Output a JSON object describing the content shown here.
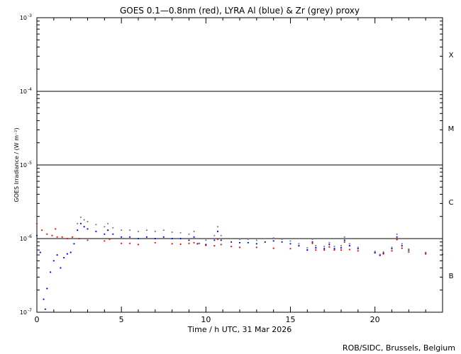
{
  "chart_data": {
    "type": "line",
    "title": "GOES 0.1—0.8nm (red), LYRA Al (blue) & Zr (grey) proxy",
    "xlabel": "Time / h UTC, 31 Mar 2026",
    "ylabel": "GOES Irradiance / (W m⁻²)",
    "xlim": [
      0,
      24
    ],
    "ylim": [
      1e-07,
      0.001
    ],
    "yscale": "log",
    "xticks": [
      0,
      5,
      10,
      15,
      20
    ],
    "xtick_labels": [
      "0",
      "5",
      "10",
      "15",
      "20"
    ],
    "yticks": [
      {
        "base": "10",
        "exp": "-7"
      },
      {
        "base": "10",
        "exp": "-6"
      },
      {
        "base": "10",
        "exp": "-5"
      },
      {
        "base": "10",
        "exp": "-4"
      },
      {
        "base": "10",
        "exp": "-3"
      }
    ],
    "flare_class_lines": [
      1e-06,
      1e-05,
      0.0001
    ],
    "flare_classes": [
      {
        "label": "B",
        "level": 3.16e-07
      },
      {
        "label": "C",
        "level": 3.16e-06
      },
      {
        "label": "M",
        "level": 3.16e-05
      },
      {
        "label": "X",
        "level": 0.000316
      }
    ],
    "series": [
      {
        "name": "GOES 0.1-0.8nm",
        "color": "#ff0000",
        "points": [
          [
            0,
            1.6e-06
          ],
          [
            0.3,
            1.3e-06
          ],
          [
            0.6,
            1.15e-06
          ],
          [
            0.9,
            1.1e-06
          ],
          [
            1.1,
            1.35e-06
          ],
          [
            1.2,
            1.05e-06
          ],
          [
            1.5,
            1.05e-06
          ],
          [
            1.8,
            1e-06
          ],
          [
            2.1,
            1.05e-06
          ],
          [
            2.5,
            1e-06
          ],
          [
            3.0,
            9.5e-07
          ],
          [
            4.0,
            9.3e-07
          ],
          [
            4.3,
            9.8e-07
          ],
          [
            5.0,
            8.6e-07
          ],
          [
            5.5,
            8.6e-07
          ],
          [
            6.0,
            8.3e-07
          ],
          [
            7.0,
            8.8e-07
          ],
          [
            8.0,
            8.5e-07
          ],
          [
            8.5,
            8.4e-07
          ],
          [
            9.0,
            8.6e-07
          ],
          [
            9.3,
            8.8e-07
          ],
          [
            9.6,
            8.6e-07
          ],
          [
            10.0,
            8.1e-07
          ],
          [
            10.5,
            8e-07
          ],
          [
            10.7,
            9.8e-07
          ],
          [
            10.9,
            8.3e-07
          ],
          [
            11.5,
            7.8e-07
          ],
          [
            12.0,
            7.6e-07
          ],
          [
            13.0,
            7.6e-07
          ],
          [
            14.0,
            7.4e-07
          ],
          [
            15.0,
            7.3e-07
          ],
          [
            16.0,
            7e-07
          ],
          [
            16.3,
            8.6e-07
          ],
          [
            16.5,
            7e-07
          ],
          [
            17.0,
            7e-07
          ],
          [
            17.3,
            7.7e-07
          ],
          [
            17.6,
            7e-07
          ],
          [
            18.0,
            7e-07
          ],
          [
            18.2,
            9e-07
          ],
          [
            18.5,
            7.1e-07
          ],
          [
            19.0,
            6.8e-07
          ],
          [
            20.0,
            6.4e-07
          ],
          [
            20.3,
            5.9e-07
          ],
          [
            20.5,
            6.2e-07
          ],
          [
            21.0,
            6.8e-07
          ],
          [
            21.3,
            9.7e-07
          ],
          [
            21.6,
            7.4e-07
          ],
          [
            22.0,
            6.6e-07
          ],
          [
            23.0,
            6.2e-07
          ],
          [
            24.0,
            6.1e-07
          ]
        ]
      },
      {
        "name": "LYRA Al proxy",
        "color": "#0000ff",
        "points": [
          [
            0,
            1.1e-06
          ],
          [
            0.2,
            6.5e-07
          ],
          [
            0.4,
            1.5e-07
          ],
          [
            0.5,
            1.1e-07
          ],
          [
            0.6,
            2.1e-07
          ],
          [
            0.8,
            3.5e-07
          ],
          [
            1.0,
            5e-07
          ],
          [
            1.2,
            6e-07
          ],
          [
            1.4,
            4e-07
          ],
          [
            1.6,
            5.5e-07
          ],
          [
            1.8,
            6.2e-07
          ],
          [
            2.0,
            6.5e-07
          ],
          [
            2.2,
            8.5e-07
          ],
          [
            2.4,
            1.3e-06
          ],
          [
            2.6,
            1.6e-06
          ],
          [
            2.8,
            1.45e-06
          ],
          [
            3.0,
            1.35e-06
          ],
          [
            3.5,
            1.25e-06
          ],
          [
            4.0,
            1.15e-06
          ],
          [
            4.2,
            1.3e-06
          ],
          [
            4.5,
            1.15e-06
          ],
          [
            5.0,
            1.05e-06
          ],
          [
            5.5,
            1.05e-06
          ],
          [
            6.0,
            1e-06
          ],
          [
            6.5,
            1.05e-06
          ],
          [
            7.0,
            1e-06
          ],
          [
            7.5,
            1.05e-06
          ],
          [
            8.0,
            1e-06
          ],
          [
            8.5,
            1e-06
          ],
          [
            9.0,
            9.5e-07
          ],
          [
            9.3,
            1.05e-06
          ],
          [
            9.5,
            8.5e-07
          ],
          [
            10.0,
            8.3e-07
          ],
          [
            10.5,
            9.5e-07
          ],
          [
            10.7,
            1.25e-06
          ],
          [
            10.9,
            9.5e-07
          ],
          [
            11.5,
            9e-07
          ],
          [
            12.0,
            8.8e-07
          ],
          [
            12.5,
            8.8e-07
          ],
          [
            13.0,
            8.5e-07
          ],
          [
            13.5,
            9e-07
          ],
          [
            14.0,
            9.3e-07
          ],
          [
            14.5,
            9e-07
          ],
          [
            15.0,
            8.5e-07
          ],
          [
            15.5,
            8e-07
          ],
          [
            16.0,
            7e-07
          ],
          [
            16.3,
            9e-07
          ],
          [
            16.5,
            7.5e-07
          ],
          [
            17.0,
            7.3e-07
          ],
          [
            17.3,
            8.3e-07
          ],
          [
            17.6,
            7.3e-07
          ],
          [
            18.0,
            7.5e-07
          ],
          [
            18.2,
            9.5e-07
          ],
          [
            18.5,
            8e-07
          ],
          [
            19.0,
            7.3e-07
          ],
          [
            20.0,
            6.5e-07
          ],
          [
            20.3,
            6e-07
          ],
          [
            20.5,
            6.4e-07
          ],
          [
            21.0,
            7.3e-07
          ],
          [
            21.3,
            1.05e-06
          ],
          [
            21.6,
            8e-07
          ],
          [
            22.0,
            7e-07
          ],
          [
            23.0,
            6.4e-07
          ],
          [
            24.0,
            6.2e-07
          ]
        ]
      },
      {
        "name": "LYRA Zr proxy",
        "color": "#808080",
        "points": [
          [
            2.2,
            1e-06
          ],
          [
            2.4,
            1.6e-06
          ],
          [
            2.6,
            1.95e-06
          ],
          [
            2.8,
            1.8e-06
          ],
          [
            3.0,
            1.7e-06
          ],
          [
            3.5,
            1.55e-06
          ],
          [
            4.0,
            1.45e-06
          ],
          [
            4.2,
            1.6e-06
          ],
          [
            4.5,
            1.4e-06
          ],
          [
            5.0,
            1.3e-06
          ],
          [
            5.5,
            1.3e-06
          ],
          [
            6.0,
            1.25e-06
          ],
          [
            6.5,
            1.3e-06
          ],
          [
            7.0,
            1.25e-06
          ],
          [
            7.5,
            1.3e-06
          ],
          [
            8.0,
            1.22e-06
          ],
          [
            8.5,
            1.2e-06
          ],
          [
            9.0,
            1.15e-06
          ],
          [
            9.3,
            1.25e-06
          ],
          [
            9.5,
            1e-06
          ],
          [
            10.0,
            9.5e-07
          ],
          [
            10.5,
            1.1e-06
          ],
          [
            10.7,
            1.45e-06
          ],
          [
            10.9,
            1.1e-06
          ],
          [
            11.5,
            1e-06
          ],
          [
            12.0,
            9.8e-07
          ],
          [
            12.5,
            9.8e-07
          ],
          [
            13.0,
            9.5e-07
          ],
          [
            13.5,
            1e-06
          ],
          [
            14.0,
            1.02e-06
          ],
          [
            14.5,
            9.8e-07
          ],
          [
            15.0,
            9.3e-07
          ],
          [
            15.5,
            8.5e-07
          ],
          [
            16.0,
            7.5e-07
          ],
          [
            16.3,
            9.8e-07
          ],
          [
            16.5,
            8e-07
          ],
          [
            17.0,
            7.8e-07
          ],
          [
            17.3,
            8.8e-07
          ],
          [
            17.6,
            7.8e-07
          ],
          [
            18.0,
            8e-07
          ],
          [
            18.2,
            1.05e-06
          ],
          [
            18.5,
            8.5e-07
          ],
          [
            19.0,
            7.6e-07
          ],
          [
            20.0,
            6.7e-07
          ],
          [
            20.3,
            6.1e-07
          ],
          [
            20.5,
            6.6e-07
          ],
          [
            21.0,
            7.6e-07
          ],
          [
            21.3,
            1.15e-06
          ],
          [
            21.6,
            8.5e-07
          ],
          [
            22.0,
            7.2e-07
          ],
          [
            23.0,
            6.5e-07
          ],
          [
            24.0,
            6.3e-07
          ]
        ]
      }
    ]
  },
  "footer": {
    "credit": "ROB/SIDC, Brussels, Belgium"
  }
}
